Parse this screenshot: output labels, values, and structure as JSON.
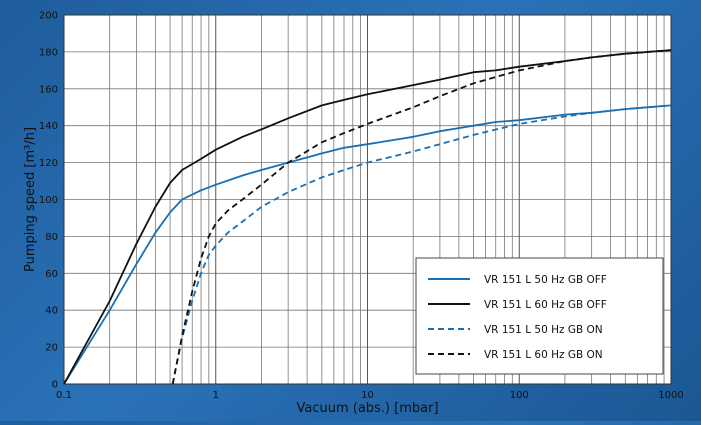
{
  "chart_data": {
    "type": "line",
    "xscale": "log",
    "xlabel": "Vacuum (abs.) [mbar]",
    "ylabel": "Pumping speed [m³/h]",
    "xlim": [
      0.1,
      1000
    ],
    "ylim": [
      0,
      200
    ],
    "xticks": [
      {
        "value": 0.1,
        "label": "0.1"
      },
      {
        "value": 1,
        "label": "1"
      },
      {
        "value": 10,
        "label": "10"
      },
      {
        "value": 100,
        "label": "100"
      },
      {
        "value": 1000,
        "label": "1000"
      }
    ],
    "yticks": [
      0,
      20,
      40,
      60,
      80,
      100,
      120,
      140,
      160,
      180,
      200
    ],
    "grid": true,
    "legend_position": "bottom-right",
    "series": [
      {
        "name": "VR 151 L 50 Hz GB OFF",
        "color": "#1a6fb3",
        "dash": "solid",
        "points": [
          [
            0.1,
            0
          ],
          [
            0.2,
            40
          ],
          [
            0.3,
            65
          ],
          [
            0.4,
            82
          ],
          [
            0.5,
            93
          ],
          [
            0.6,
            100
          ],
          [
            0.8,
            105
          ],
          [
            1,
            108
          ],
          [
            1.5,
            113
          ],
          [
            2,
            116
          ],
          [
            3,
            120
          ],
          [
            5,
            125
          ],
          [
            7,
            128
          ],
          [
            10,
            130
          ],
          [
            20,
            134
          ],
          [
            30,
            137
          ],
          [
            50,
            140
          ],
          [
            70,
            142
          ],
          [
            100,
            143
          ],
          [
            200,
            146
          ],
          [
            300,
            147
          ],
          [
            500,
            149
          ],
          [
            1000,
            151
          ]
        ]
      },
      {
        "name": "VR 151 L 60 Hz GB OFF",
        "color": "#111111",
        "dash": "solid",
        "points": [
          [
            0.1,
            0
          ],
          [
            0.2,
            45
          ],
          [
            0.3,
            76
          ],
          [
            0.4,
            96
          ],
          [
            0.5,
            109
          ],
          [
            0.6,
            116
          ],
          [
            0.8,
            122
          ],
          [
            1,
            127
          ],
          [
            1.5,
            134
          ],
          [
            2,
            138
          ],
          [
            3,
            144
          ],
          [
            5,
            151
          ],
          [
            7,
            154
          ],
          [
            10,
            157
          ],
          [
            20,
            162
          ],
          [
            30,
            165
          ],
          [
            50,
            169
          ],
          [
            70,
            170
          ],
          [
            100,
            172
          ],
          [
            200,
            175
          ],
          [
            300,
            177
          ],
          [
            500,
            179
          ],
          [
            1000,
            181
          ]
        ]
      },
      {
        "name": "VR 151 L 50 Hz GB ON",
        "color": "#1a6fb3",
        "dash": "dashed",
        "points": [
          [
            0.52,
            0
          ],
          [
            0.6,
            25
          ],
          [
            0.7,
            45
          ],
          [
            0.8,
            60
          ],
          [
            0.9,
            70
          ],
          [
            1,
            75
          ],
          [
            1.2,
            82
          ],
          [
            1.5,
            88
          ],
          [
            2,
            96
          ],
          [
            3,
            104
          ],
          [
            5,
            112
          ],
          [
            7,
            116
          ],
          [
            10,
            120
          ],
          [
            20,
            126
          ],
          [
            30,
            130
          ],
          [
            50,
            135
          ],
          [
            100,
            141
          ],
          [
            200,
            145
          ],
          [
            300,
            147
          ],
          [
            500,
            149
          ],
          [
            1000,
            151
          ]
        ]
      },
      {
        "name": "VR 151 L 60 Hz GB ON",
        "color": "#111111",
        "dash": "dashed",
        "points": [
          [
            0.52,
            0
          ],
          [
            0.6,
            26
          ],
          [
            0.7,
            50
          ],
          [
            0.8,
            68
          ],
          [
            0.9,
            80
          ],
          [
            1,
            87
          ],
          [
            1.2,
            94
          ],
          [
            1.5,
            100
          ],
          [
            2,
            108
          ],
          [
            3,
            120
          ],
          [
            5,
            131
          ],
          [
            7,
            136
          ],
          [
            10,
            141
          ],
          [
            20,
            150
          ],
          [
            30,
            156
          ],
          [
            50,
            163
          ],
          [
            100,
            170
          ],
          [
            200,
            175
          ],
          [
            300,
            177
          ],
          [
            500,
            179
          ],
          [
            1000,
            181
          ]
        ]
      }
    ]
  }
}
